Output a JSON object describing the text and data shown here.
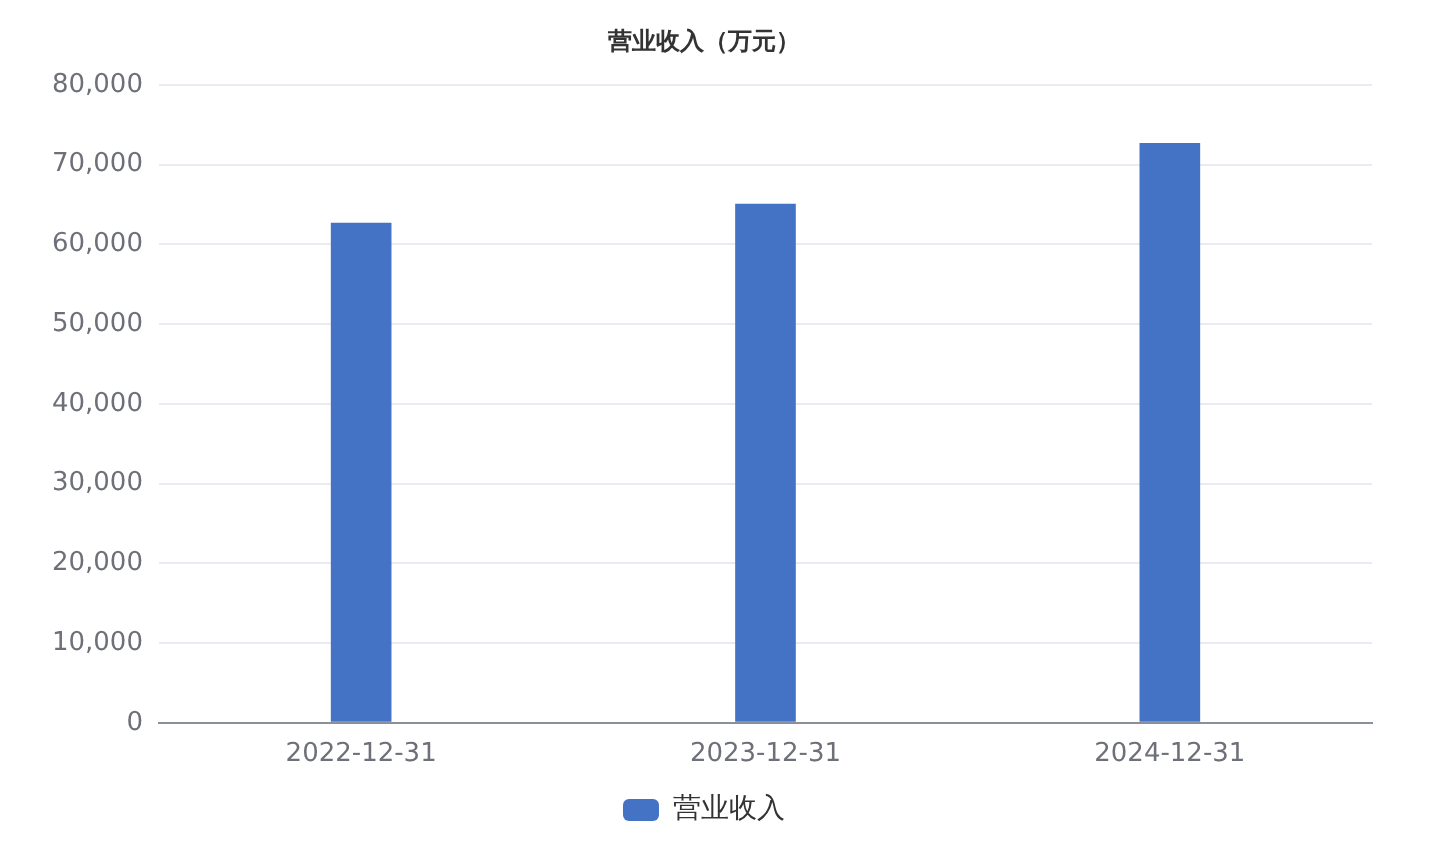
{
  "chart_data": {
    "type": "bar",
    "title": "营业收入（万元）",
    "categories": [
      "2022-12-31",
      "2023-12-31",
      "2024-12-31"
    ],
    "series": [
      {
        "name": "营业收入",
        "color": "#4472c4",
        "values": [
          62700,
          65100,
          72700
        ]
      }
    ],
    "ylim": [
      0,
      80000
    ],
    "yticks": [
      0,
      {
        "value": 10000,
        "label": "10,000"
      },
      {
        "value": 20000,
        "label": "20,000"
      },
      {
        "value": 30000,
        "label": "30,000"
      },
      {
        "value": 40000,
        "label": "40,000"
      },
      {
        "value": 50000,
        "label": "50,000"
      },
      {
        "value": 60000,
        "label": "60,000"
      },
      {
        "value": 70000,
        "label": "70,000"
      },
      {
        "value": 80000,
        "label": "80,000"
      }
    ],
    "grid": "y",
    "legend": "bottom"
  }
}
